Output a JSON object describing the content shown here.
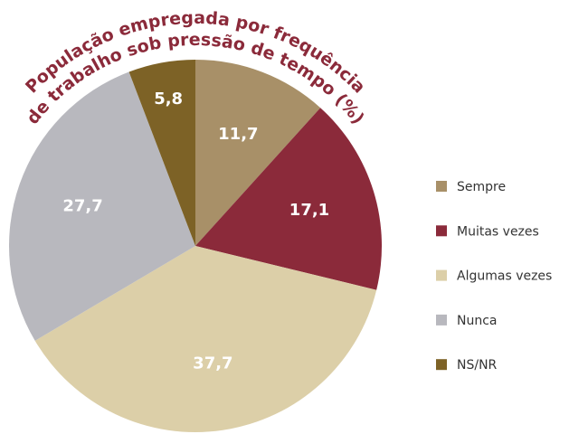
{
  "chart_data": {
    "type": "pie",
    "title": [
      "População empregada por frequência",
      "de trabalho sob pressão de tempo (%)"
    ],
    "categories": [
      "Sempre",
      "Muitas vezes",
      "Algumas vezes",
      "Nunca",
      "NS/NR"
    ],
    "values": [
      11.7,
      17.1,
      37.7,
      27.7,
      5.8
    ],
    "value_labels": [
      "11,7",
      "17,1",
      "37,7",
      "27,7",
      "5,8"
    ],
    "colors": [
      "#a89068",
      "#8b2a3a",
      "#dccfa8",
      "#b8b8be",
      "#7d6226"
    ],
    "legend": "right"
  }
}
